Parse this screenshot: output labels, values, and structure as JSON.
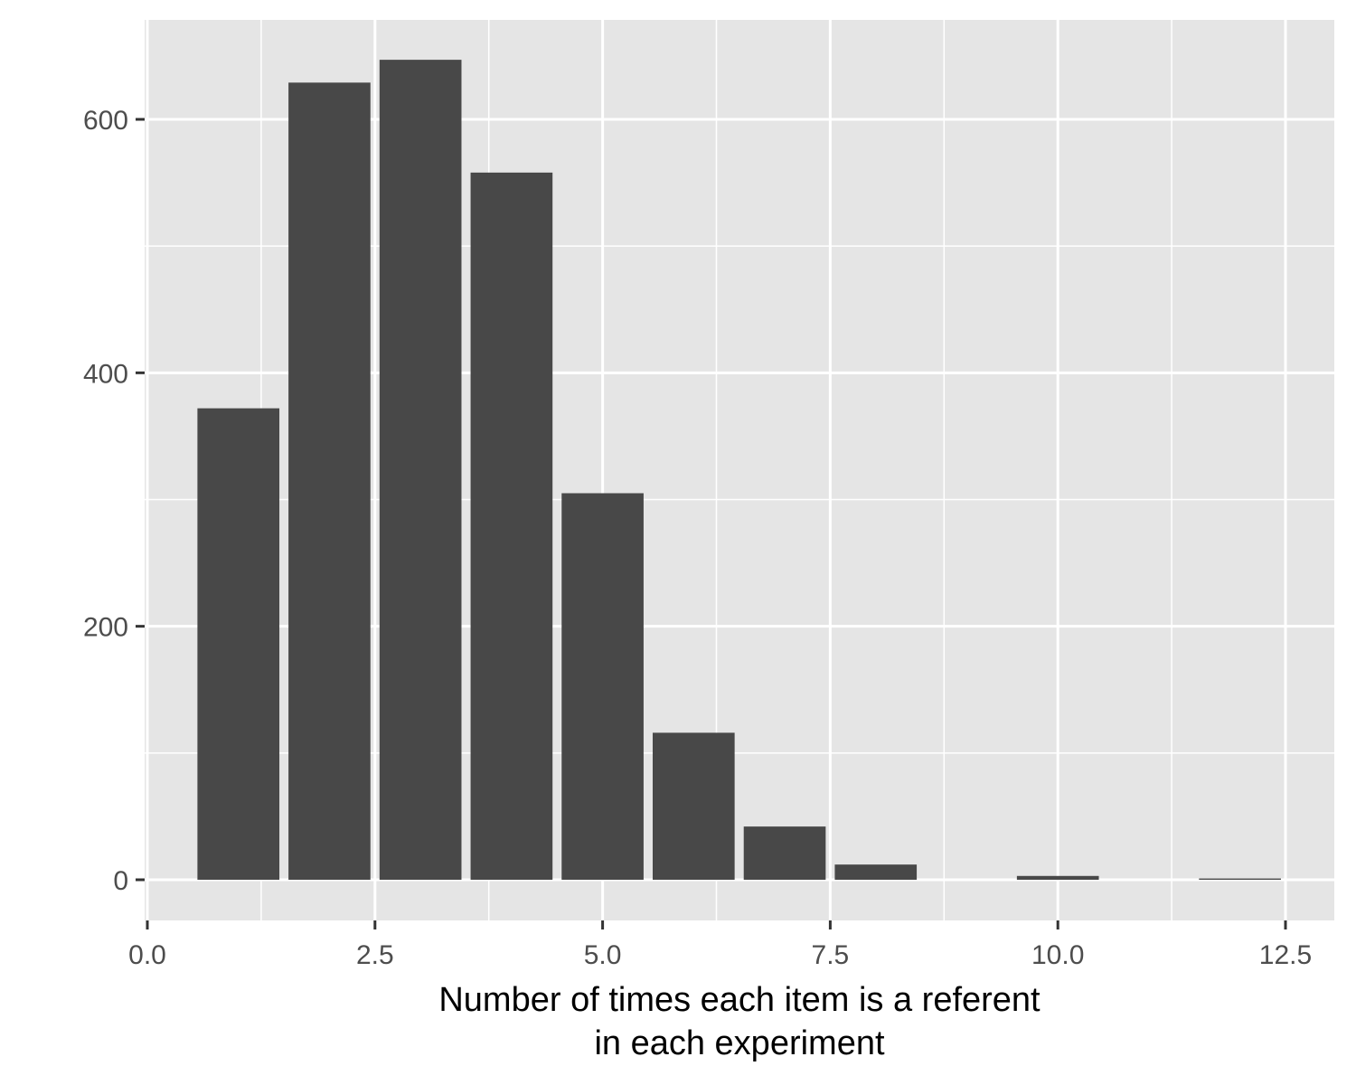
{
  "chart_data": {
    "type": "bar",
    "title": "",
    "xlabel": [
      "Number of times each item is a referent",
      "in each experiment"
    ],
    "ylabel": "",
    "x": [
      1,
      2,
      3,
      4,
      5,
      6,
      7,
      8,
      10,
      12
    ],
    "values": [
      372,
      629,
      647,
      558,
      305,
      116,
      42,
      12,
      3,
      1
    ],
    "xlim": [
      0,
      12.5
    ],
    "ylim": [
      0,
      600
    ],
    "x_ticks": [
      "0.0",
      "2.5",
      "5.0",
      "7.5",
      "10.0",
      "12.5"
    ],
    "x_tick_values": [
      0,
      2.5,
      5,
      7.5,
      10,
      12.5
    ],
    "y_ticks": [
      "0",
      "200",
      "400",
      "600"
    ],
    "y_tick_values": [
      0,
      200,
      400,
      600
    ],
    "grid": true,
    "legend": "none",
    "colors": {
      "bar": "#484848",
      "panel_background": "#e5e5e5",
      "grid_line": "#ffffff",
      "tick_mark": "#333333"
    }
  }
}
